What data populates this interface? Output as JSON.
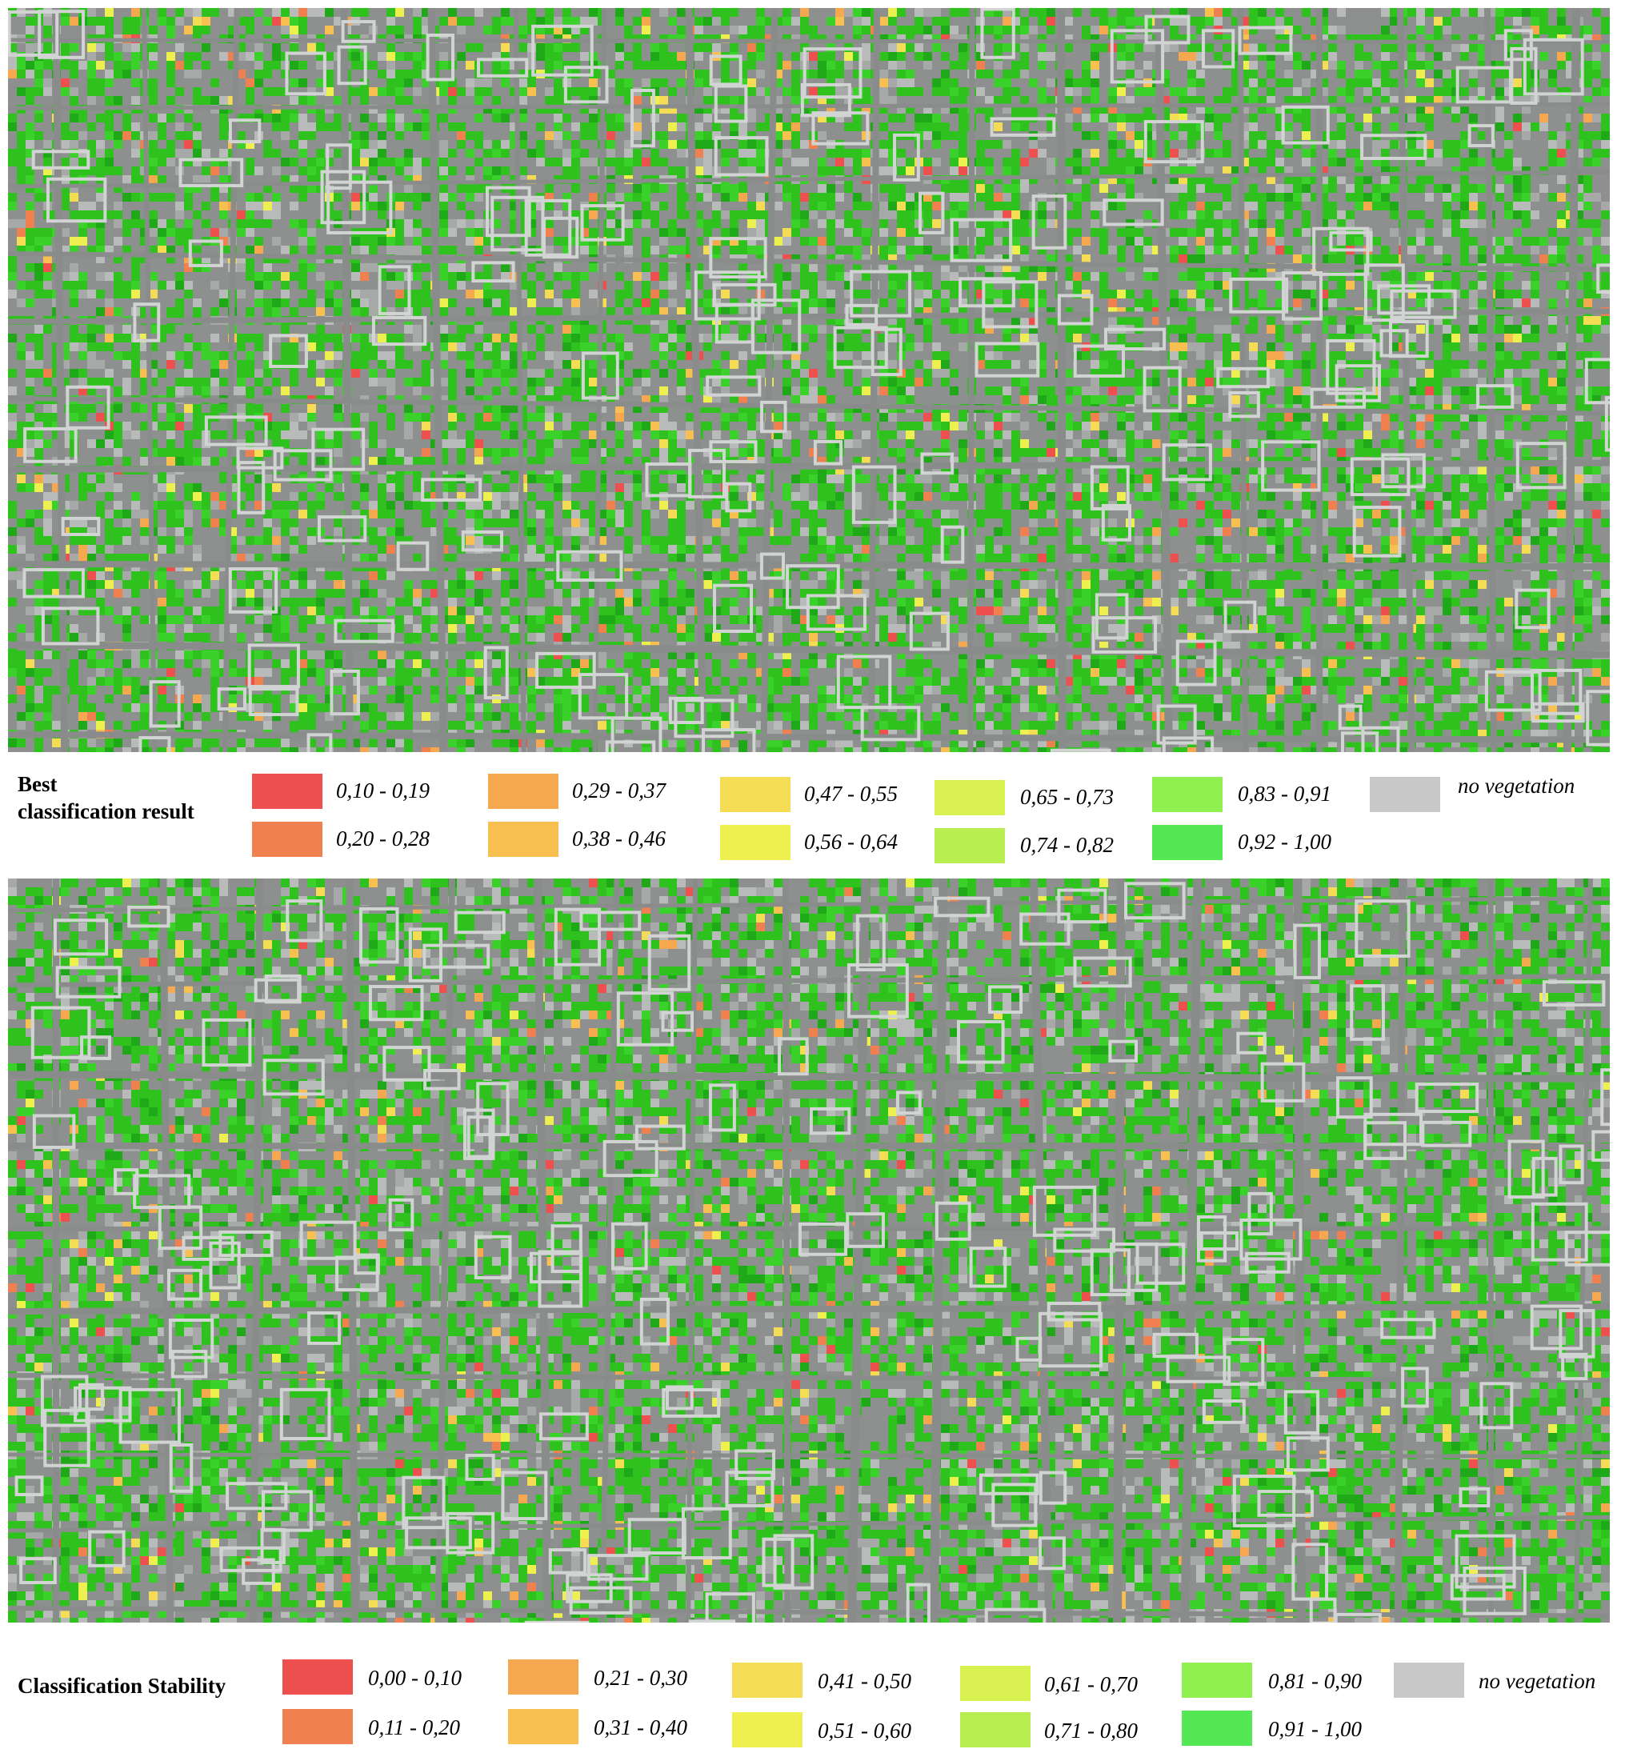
{
  "maps": [
    {
      "name": "best-classification-map"
    },
    {
      "name": "classification-stability-map"
    }
  ],
  "legend1": {
    "title": "Best\nclassification result",
    "items": [
      {
        "label": "0,10 - 0,19",
        "color": "#ee5050"
      },
      {
        "label": "0,20 - 0,28",
        "color": "#f08050"
      },
      {
        "label": "0,29 - 0,37",
        "color": "#f5a850"
      },
      {
        "label": "0,38 - 0,46",
        "color": "#f7c050"
      },
      {
        "label": "0,47 - 0,55",
        "color": "#f5dc55"
      },
      {
        "label": "0,56 - 0,64",
        "color": "#eef050"
      },
      {
        "label": "0,65 - 0,73",
        "color": "#d8f050"
      },
      {
        "label": "0,74 - 0,82",
        "color": "#b8ee50"
      },
      {
        "label": "0,83 - 0,91",
        "color": "#90f050"
      },
      {
        "label": "0,92 - 1,00",
        "color": "#55e855"
      },
      {
        "label": "no vegetation",
        "color": "#c8c8c8"
      }
    ]
  },
  "legend2": {
    "title": "Classification Stability",
    "items": [
      {
        "label": "0,00 - 0,10",
        "color": "#ee5050"
      },
      {
        "label": "0,11 - 0,20",
        "color": "#f08050"
      },
      {
        "label": "0,21 - 0,30",
        "color": "#f5a850"
      },
      {
        "label": "0,31 - 0,40",
        "color": "#f7c050"
      },
      {
        "label": "0,41 - 0,50",
        "color": "#f5dc55"
      },
      {
        "label": "0,51 - 0,60",
        "color": "#eef050"
      },
      {
        "label": "0,61 - 0,70",
        "color": "#d8f050"
      },
      {
        "label": "0,71 - 0,80",
        "color": "#b8ee50"
      },
      {
        "label": "0,81 - 0,90",
        "color": "#90f050"
      },
      {
        "label": "0,91 - 1,00",
        "color": "#55e855"
      },
      {
        "label": "no vegetation",
        "color": "#c8c8c8"
      }
    ]
  }
}
